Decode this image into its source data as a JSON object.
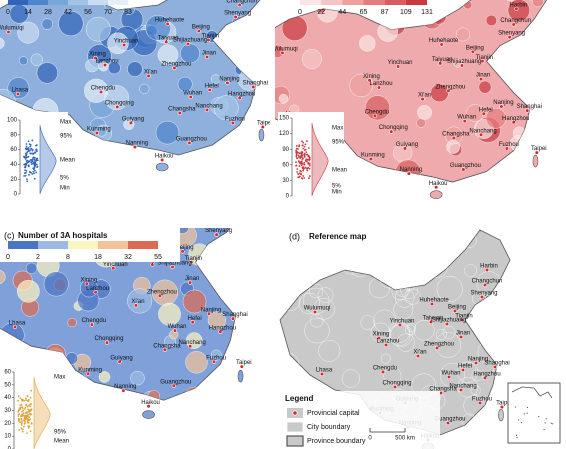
{
  "panel_a": {
    "colorbar_ticks": [
      0,
      14,
      28,
      42,
      56,
      70,
      83
    ],
    "colors": [
      "#2f64b8",
      "#4f85cc",
      "#79a6da",
      "#a3c3e6",
      "#c9dcf0",
      "#e6eff8"
    ],
    "map_color": "#8fb0dc",
    "inset_yticks": [
      0,
      20,
      40,
      60,
      80,
      100
    ],
    "stats": [
      "Max",
      "95%",
      "Mean",
      "5%",
      "Min"
    ]
  },
  "panel_b": {
    "colorbar_ticks": [
      0,
      22,
      44,
      65,
      87,
      109,
      131
    ],
    "colors": [
      "#fbe4e4",
      "#f5c4c4",
      "#eea0a0",
      "#e57d7f",
      "#d95c60",
      "#c9393f"
    ],
    "map_color": "#eeaaac",
    "inset_yticks": [
      0,
      30,
      60,
      90,
      120,
      150
    ],
    "stats": [
      "Max",
      "95%",
      "Mean",
      "5%",
      "Min"
    ]
  },
  "panel_c": {
    "label": "(c)",
    "title": "Number of 3A hospitals",
    "colorbar_ticks": [
      0,
      2,
      8,
      18,
      32,
      55
    ],
    "colors": [
      "#4a74c4",
      "#9bb9e3",
      "#fdf5c0",
      "#f2c39a",
      "#dc6a52"
    ],
    "map_color": "#7fa0d8",
    "inset_yticks": [
      0,
      10,
      20,
      30,
      40,
      50,
      60
    ],
    "stats": [
      "Max",
      "95%",
      "Mean"
    ]
  },
  "panel_d": {
    "label": "(d)",
    "title": "Reference map",
    "map_color": "#c9c9c9",
    "legend": {
      "title": "Legend",
      "items": [
        "Provincial capital",
        "City boundary",
        "Province boundary"
      ]
    },
    "scale": [
      "0",
      "500 km"
    ]
  },
  "cities": [
    "Harbin",
    "Changchun",
    "Shenyang",
    "Wulumuqi",
    "Huhehaote",
    "Beijing",
    "Tianjin",
    "Taiyuan",
    "Shijiazhuang",
    "Yinchuan",
    "Jinan",
    "Xining",
    "Lanzhou",
    "Zhengzhou",
    "Xi'an",
    "Nanjing",
    "Hefei",
    "Shanghai",
    "Lhasa",
    "Chengdu",
    "Wuhan",
    "Hangzhou",
    "Chongqing",
    "Changsha",
    "Nanchang",
    "Guiyang",
    "Fuzhou",
    "Kunming",
    "Taipei",
    "Nanning",
    "Guangzhou",
    "Haikou"
  ]
}
